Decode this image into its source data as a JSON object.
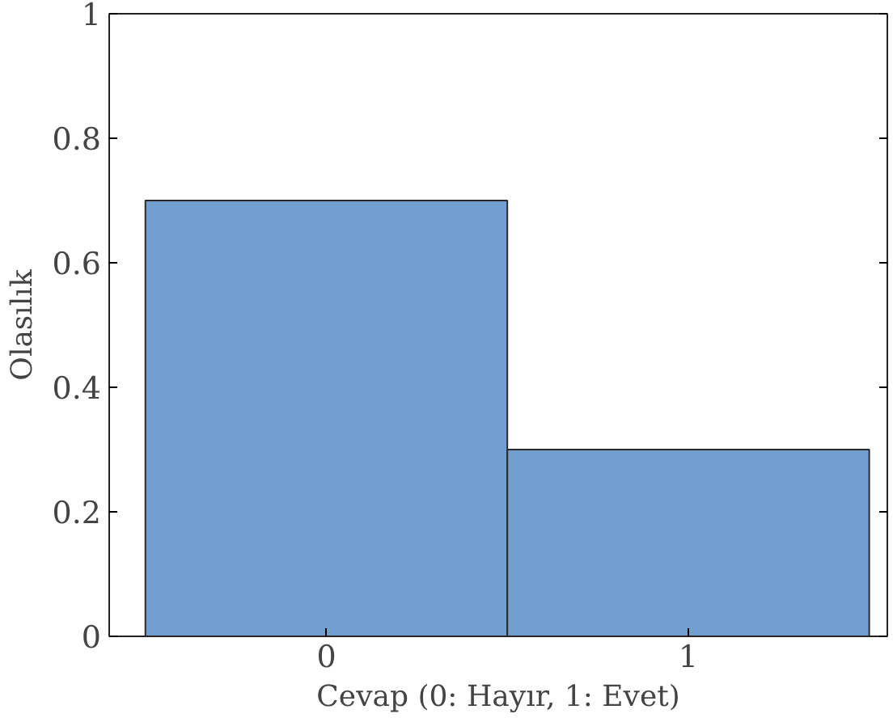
{
  "chart_data": {
    "type": "bar",
    "xlabel": "Cevap (0: Hayır, 1: Evet)",
    "ylabel": "Olasılık",
    "categories": [
      "0",
      "1"
    ],
    "values": [
      0.7,
      0.3
    ],
    "color": "#729fcf",
    "ylim": [
      0,
      1
    ],
    "yticks": [
      0,
      0.2,
      0.4,
      0.6,
      0.8,
      1
    ],
    "grid": false
  }
}
